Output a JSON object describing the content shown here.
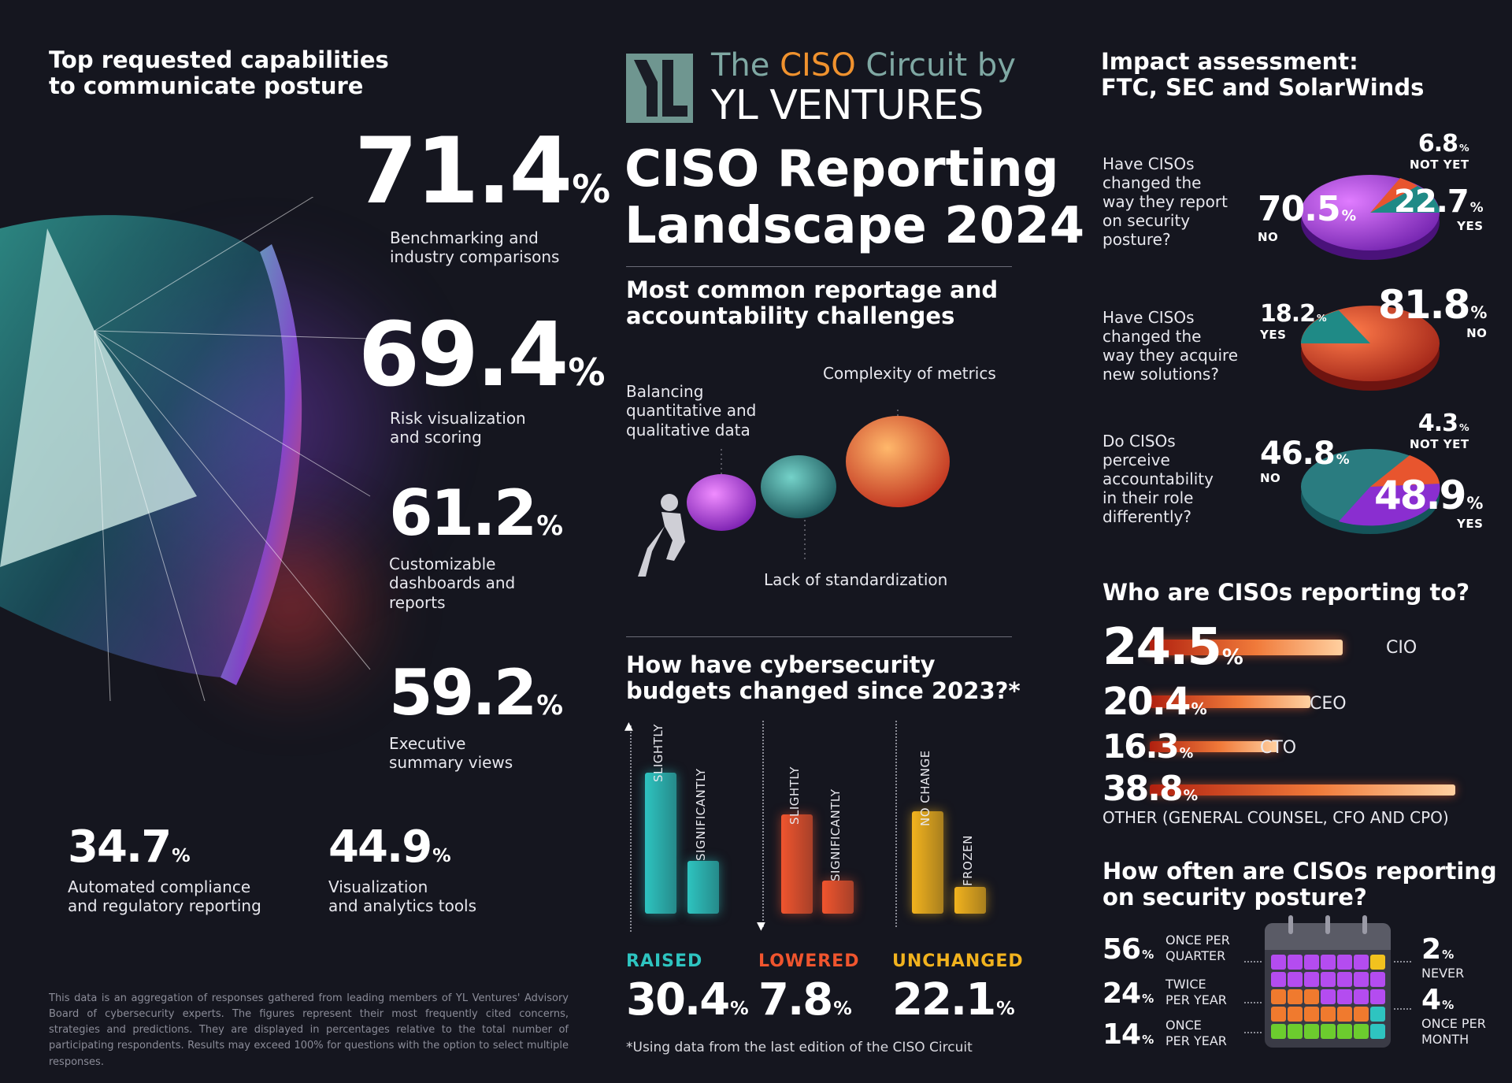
{
  "left": {
    "title_line1": "Top requested capabilities",
    "title_line2": "to communicate posture",
    "items": [
      {
        "value": "71.4",
        "unit": "%",
        "label_line1": "Benchmarking and",
        "label_line2": "industry comparisons",
        "label_line3": ""
      },
      {
        "value": "69.4",
        "unit": "%",
        "label_line1": "Risk visualization",
        "label_line2": "and scoring",
        "label_line3": ""
      },
      {
        "value": "61.2",
        "unit": "%",
        "label_line1": "Customizable",
        "label_line2": "dashboards and",
        "label_line3": "reports"
      },
      {
        "value": "59.2",
        "unit": "%",
        "label_line1": "Executive",
        "label_line2": "summary views",
        "label_line3": ""
      },
      {
        "value": "34.7",
        "unit": "%",
        "label_line1": "Automated compliance",
        "label_line2": "and regulatory reporting",
        "label_line3": ""
      },
      {
        "value": "44.9",
        "unit": "%",
        "label_line1": "Visualization",
        "label_line2": "and analytics tools",
        "label_line3": ""
      }
    ],
    "footnote": "This data is an aggregation of responses gathered from leading members of YL Ventures' Advisory Board of cybersecurity experts. The figures represent their most frequently cited concerns, strategies and predictions. They are displayed in percentages relative to the total number of participating respondents. Results may exceed 100% for questions with the option to select multiple responses."
  },
  "brand": {
    "line1_pre": "The ",
    "line1_accent": "CISO",
    "line1_post": " Circuit by",
    "line2": "YL VENTURES",
    "logo_text": "YL",
    "colors": {
      "accent": "#f0922e",
      "teal": "#7fa8a3"
    }
  },
  "center": {
    "title_line1": "CISO Reporting",
    "title_line2": "Landscape 2024",
    "challenges_title_line1": "Most common reportage and",
    "challenges_title_line2": "accountability challenges",
    "challenge_balancing_line1": "Balancing",
    "challenge_balancing_line2": "quantitative and",
    "challenge_balancing_line3": "qualitative data",
    "challenge_complexity": "Complexity of metrics",
    "challenge_standard": "Lack of standardization",
    "budgets_title_line1": "How have cybersecurity",
    "budgets_title_line2": "budgets changed since 2023?*",
    "budget_groups": [
      {
        "name": "RAISED",
        "value": "30.4",
        "unit": "%",
        "bars": [
          {
            "label": "SLIGHTLY",
            "level": 0.85
          },
          {
            "label": "SIGNIFICANTLY",
            "level": 0.32
          }
        ],
        "color": "#2ec4c0"
      },
      {
        "name": "LOWERED",
        "value": "7.8",
        "unit": "%",
        "bars": [
          {
            "label": "SLIGHTLY",
            "level": 0.6
          },
          {
            "label": "SIGNIFICANTLY",
            "level": 0.2
          }
        ],
        "color": "#f0552e"
      },
      {
        "name": "UNCHANGED",
        "value": "22.1",
        "unit": "%",
        "bars": [
          {
            "label": "NO CHANGE",
            "level": 0.62
          },
          {
            "label": "FROZEN",
            "level": 0.16
          }
        ],
        "color": "#f2b31e"
      }
    ],
    "budget_footnote": "*Using data from the last edition of the CISO Circuit"
  },
  "right": {
    "impact_title_line1": "Impact assessment:",
    "impact_title_line2": "FTC, SEC and SolarWinds",
    "q1": {
      "line1": "Have CISOs",
      "line2": "changed the",
      "line3": "way they report",
      "line4": "on security",
      "line5": "posture?",
      "a": "70.5",
      "a_lbl": "NO",
      "b": "22.7",
      "b_lbl": "YES",
      "c": "6.8",
      "c_lbl": "NOT YET",
      "unit": "%"
    },
    "q2": {
      "line1": "Have CISOs",
      "line2": "changed the",
      "line3": "way they acquire",
      "line4": "new solutions?",
      "a": "18.2",
      "a_lbl": "YES",
      "b": "81.8",
      "b_lbl": "NO",
      "unit": "%"
    },
    "q3": {
      "line1": "Do CISOs",
      "line2": "perceive",
      "line3": "accountability",
      "line4": "in their role",
      "line5": "differently?",
      "a": "46.8",
      "a_lbl": "NO",
      "b": "48.9",
      "b_lbl": "YES",
      "c": "4.3",
      "c_lbl": "NOT YET",
      "unit": "%"
    },
    "reporting_title": "Who are CISOs reporting to?",
    "reporting": [
      {
        "value": "24.5",
        "unit": "%",
        "label": "CIO",
        "level": 0.245
      },
      {
        "value": "20.4",
        "unit": "%",
        "label": "CEO",
        "level": 0.204
      },
      {
        "value": "16.3",
        "unit": "%",
        "label": "CTO",
        "level": 0.163
      },
      {
        "value": "38.8",
        "unit": "%",
        "label": "OTHER (GENERAL COUNSEL, CFO AND CPO)",
        "level": 0.388
      }
    ],
    "freq_title_line1": "How often are CISOs reporting",
    "freq_title_line2": "on security posture?",
    "freq_left": [
      {
        "value": "56",
        "unit": "%",
        "line1": "ONCE PER",
        "line2": "QUARTER"
      },
      {
        "value": "24",
        "unit": "%",
        "line1": "TWICE",
        "line2": "PER YEAR"
      },
      {
        "value": "14",
        "unit": "%",
        "line1": "ONCE",
        "line2": "PER YEAR"
      }
    ],
    "freq_right": [
      {
        "value": "2",
        "unit": "%",
        "line1": "NEVER",
        "line2": ""
      },
      {
        "value": "4",
        "unit": "%",
        "line1": "ONCE PER",
        "line2": "MONTH"
      }
    ]
  }
}
